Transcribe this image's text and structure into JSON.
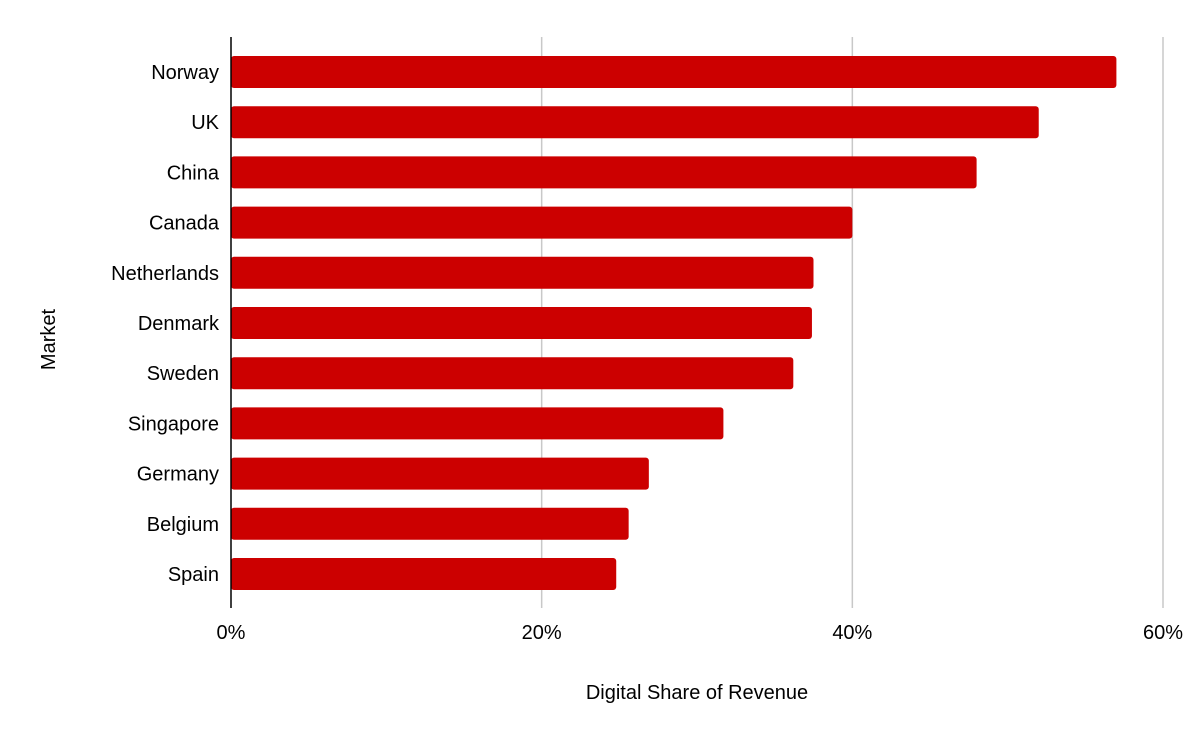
{
  "chart_data": {
    "type": "bar",
    "orientation": "horizontal",
    "xlabel": "Digital Share of Revenue",
    "ylabel": "Market",
    "xlim": [
      0,
      60
    ],
    "xticks": [
      0,
      20,
      40,
      60
    ],
    "xtick_labels": [
      "0%",
      "20%",
      "40%",
      "60%"
    ],
    "x_unit": "%",
    "grid": "vertical gridlines",
    "legend": "none",
    "bar_color": "#cc0000",
    "categories": [
      "Norway",
      "UK",
      "China",
      "Canada",
      "Netherlands",
      "Denmark",
      "Sweden",
      "Singapore",
      "Germany",
      "Belgium",
      "Spain"
    ],
    "values": [
      57,
      52,
      48,
      40,
      37.5,
      37.4,
      36.2,
      31.7,
      26.9,
      25.6,
      24.8
    ]
  }
}
